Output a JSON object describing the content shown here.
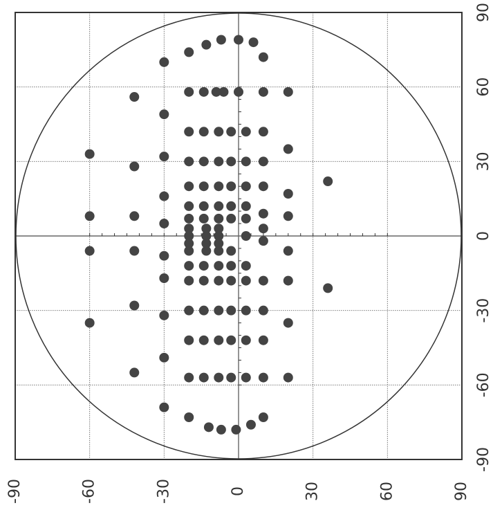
{
  "chart_data": {
    "type": "scatter",
    "title": "",
    "xlabel": "",
    "ylabel": "",
    "xlim": [
      -90,
      90
    ],
    "ylim": [
      -90,
      90
    ],
    "grid": true,
    "boundary": "circle",
    "x_ticks": [
      "90",
      "60",
      "30",
      "0",
      "-30",
      "-60",
      "-90"
    ],
    "y_ticks": [
      "90",
      "60",
      "30",
      "0",
      "-30",
      "-60",
      "-90"
    ],
    "colors": {
      "frame": "#333333",
      "grid": "#666666",
      "points": "#444444"
    },
    "points": [
      {
        "x": 72,
        "y": 10
      },
      {
        "x": 78,
        "y": 6
      },
      {
        "x": 79,
        "y": 0
      },
      {
        "x": 79,
        "y": -7
      },
      {
        "x": 77,
        "y": -13
      },
      {
        "x": 74,
        "y": -20
      },
      {
        "x": 70,
        "y": -30
      },
      {
        "x": 56,
        "y": -42
      },
      {
        "x": 58,
        "y": 20
      },
      {
        "x": 58,
        "y": 10
      },
      {
        "x": 58,
        "y": 0
      },
      {
        "x": 58,
        "y": -6
      },
      {
        "x": 58,
        "y": -9
      },
      {
        "x": 58,
        "y": -14
      },
      {
        "x": 58,
        "y": -20
      },
      {
        "x": 49,
        "y": -30
      },
      {
        "x": 42,
        "y": 10
      },
      {
        "x": 42,
        "y": 3
      },
      {
        "x": 42,
        "y": -3
      },
      {
        "x": 42,
        "y": -8
      },
      {
        "x": 42,
        "y": -14
      },
      {
        "x": 42,
        "y": -20
      },
      {
        "x": 35,
        "y": 20
      },
      {
        "x": 33,
        "y": -60
      },
      {
        "x": 32,
        "y": -30
      },
      {
        "x": 28,
        "y": -42
      },
      {
        "x": 30,
        "y": 10
      },
      {
        "x": 30,
        "y": 3
      },
      {
        "x": 30,
        "y": -3
      },
      {
        "x": 30,
        "y": -8
      },
      {
        "x": 30,
        "y": -14
      },
      {
        "x": 30,
        "y": -20
      },
      {
        "x": 22,
        "y": 36
      },
      {
        "x": 20,
        "y": 10
      },
      {
        "x": 20,
        "y": 3
      },
      {
        "x": 20,
        "y": -3
      },
      {
        "x": 20,
        "y": -8
      },
      {
        "x": 20,
        "y": -14
      },
      {
        "x": 20,
        "y": -20
      },
      {
        "x": 17,
        "y": 20
      },
      {
        "x": 16,
        "y": -30
      },
      {
        "x": 12,
        "y": 3
      },
      {
        "x": 12,
        "y": -3
      },
      {
        "x": 12,
        "y": -8
      },
      {
        "x": 12,
        "y": -14
      },
      {
        "x": 12,
        "y": -20
      },
      {
        "x": 9,
        "y": 10
      },
      {
        "x": 8,
        "y": 20
      },
      {
        "x": 8,
        "y": -42
      },
      {
        "x": 8,
        "y": -60
      },
      {
        "x": 7,
        "y": 3
      },
      {
        "x": 7,
        "y": -3
      },
      {
        "x": 7,
        "y": -8
      },
      {
        "x": 7,
        "y": -14
      },
      {
        "x": 7,
        "y": -20
      },
      {
        "x": 5,
        "y": -30
      },
      {
        "x": 3,
        "y": 10
      },
      {
        "x": 3,
        "y": -8
      },
      {
        "x": 3,
        "y": -13
      },
      {
        "x": 3,
        "y": -20
      },
      {
        "x": 0,
        "y": 3
      },
      {
        "x": 0,
        "y": -8
      },
      {
        "x": 0,
        "y": -13
      },
      {
        "x": 0,
        "y": -20
      },
      {
        "x": -2,
        "y": 10
      },
      {
        "x": -3,
        "y": -8
      },
      {
        "x": -3,
        "y": -13
      },
      {
        "x": -3,
        "y": -20
      },
      {
        "x": -6,
        "y": 20
      },
      {
        "x": -6,
        "y": -3
      },
      {
        "x": -6,
        "y": -8
      },
      {
        "x": -6,
        "y": -13
      },
      {
        "x": -6,
        "y": -20
      },
      {
        "x": -6,
        "y": -42
      },
      {
        "x": -6,
        "y": -60
      },
      {
        "x": -8,
        "y": -30
      },
      {
        "x": -12,
        "y": 3
      },
      {
        "x": -12,
        "y": -3
      },
      {
        "x": -12,
        "y": -8
      },
      {
        "x": -12,
        "y": -14
      },
      {
        "x": -12,
        "y": -20
      },
      {
        "x": -18,
        "y": 20
      },
      {
        "x": -18,
        "y": 10
      },
      {
        "x": -18,
        "y": 3
      },
      {
        "x": -18,
        "y": -3
      },
      {
        "x": -18,
        "y": -8
      },
      {
        "x": -18,
        "y": -14
      },
      {
        "x": -18,
        "y": -20
      },
      {
        "x": -17,
        "y": -30
      },
      {
        "x": -21,
        "y": 36
      },
      {
        "x": -28,
        "y": -42
      },
      {
        "x": -30,
        "y": 10
      },
      {
        "x": -30,
        "y": 3
      },
      {
        "x": -30,
        "y": -3
      },
      {
        "x": -30,
        "y": -8
      },
      {
        "x": -30,
        "y": -14
      },
      {
        "x": -30,
        "y": -20
      },
      {
        "x": -32,
        "y": -30
      },
      {
        "x": -35,
        "y": 20
      },
      {
        "x": -35,
        "y": -60
      },
      {
        "x": -42,
        "y": 10
      },
      {
        "x": -42,
        "y": 3
      },
      {
        "x": -42,
        "y": -3
      },
      {
        "x": -42,
        "y": -8
      },
      {
        "x": -42,
        "y": -14
      },
      {
        "x": -42,
        "y": -20
      },
      {
        "x": -49,
        "y": -30
      },
      {
        "x": -55,
        "y": -42
      },
      {
        "x": -57,
        "y": 20
      },
      {
        "x": -57,
        "y": 10
      },
      {
        "x": -57,
        "y": 3
      },
      {
        "x": -57,
        "y": -3
      },
      {
        "x": -57,
        "y": -8
      },
      {
        "x": -57,
        "y": -14
      },
      {
        "x": -57,
        "y": -20
      },
      {
        "x": -69,
        "y": -30
      },
      {
        "x": -73,
        "y": 10
      },
      {
        "x": -76,
        "y": 5
      },
      {
        "x": -78,
        "y": -1
      },
      {
        "x": -78,
        "y": -7
      },
      {
        "x": -77,
        "y": -12
      },
      {
        "x": -73,
        "y": -20
      }
    ]
  }
}
